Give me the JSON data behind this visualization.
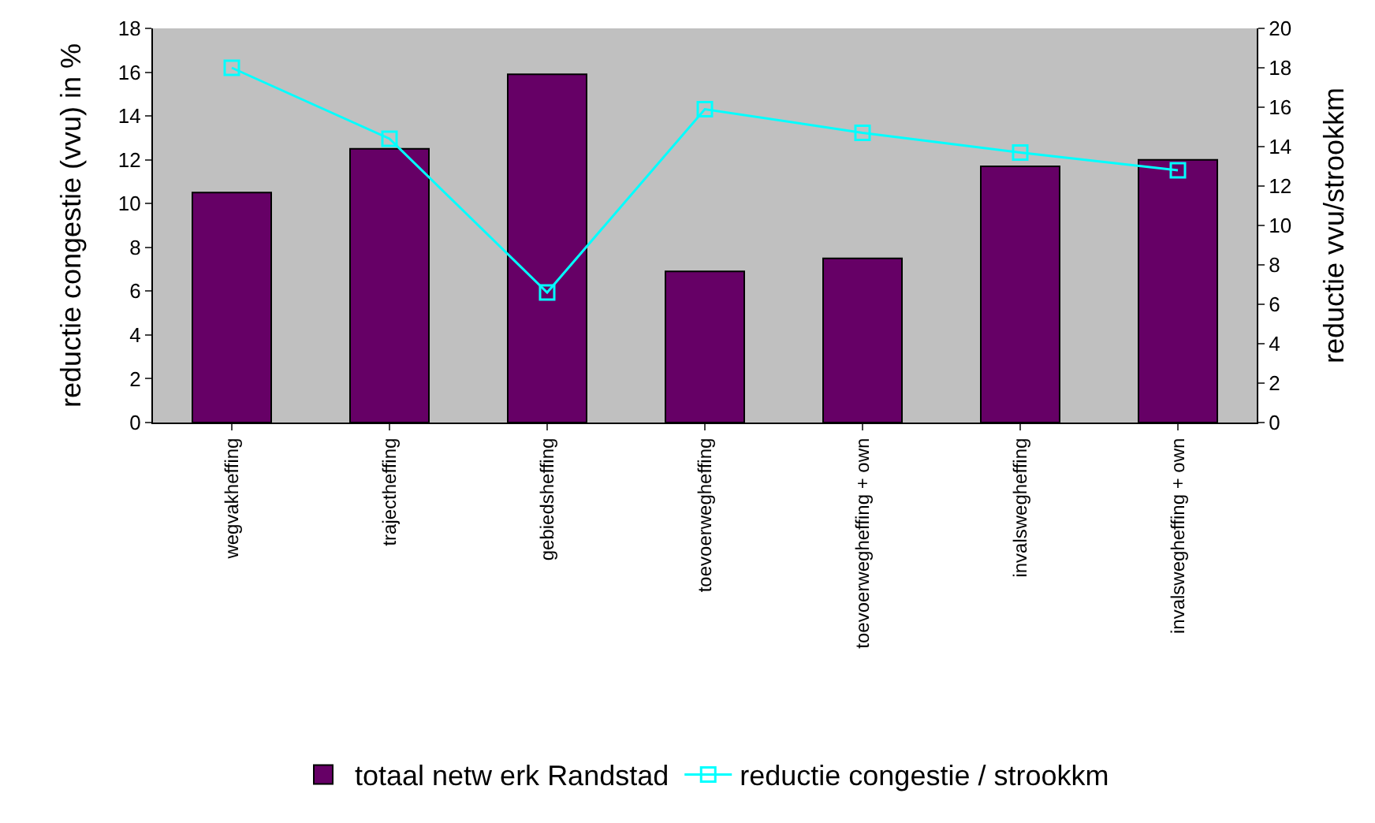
{
  "chart_data": {
    "type": "bar",
    "ylabel": "reductie congestie (vvu) in %",
    "y2label": "reductie vvu/strookkm",
    "categories": [
      "wegvakheffing",
      "trajectheffing",
      "gebiedsheffing",
      "toevoerwegheffing",
      "toevoerwegheffing + own",
      "invalswegheffing",
      "invalswegheffing + own"
    ],
    "series": [
      {
        "name": "totaal netw erk Randstad",
        "color": "#660066",
        "values": [
          10.5,
          12.5,
          15.9,
          6.9,
          7.5,
          11.7,
          12.0
        ]
      },
      {
        "name": "reductie congestie / strookkm",
        "type": "line",
        "axis": "y2",
        "color": "#00ffff",
        "marker": "square",
        "values": [
          18.0,
          14.4,
          6.6,
          15.9,
          14.7,
          13.7,
          12.8
        ]
      }
    ],
    "ylim": [
      0,
      18
    ],
    "yticks": [
      0,
      2,
      4,
      6,
      8,
      10,
      12,
      14,
      16,
      18
    ],
    "y2lim": [
      0,
      20
    ],
    "y2ticks": [
      0,
      2,
      4,
      6,
      8,
      10,
      12,
      14,
      16,
      18,
      20
    ],
    "grid": false,
    "legend": "bottom"
  }
}
